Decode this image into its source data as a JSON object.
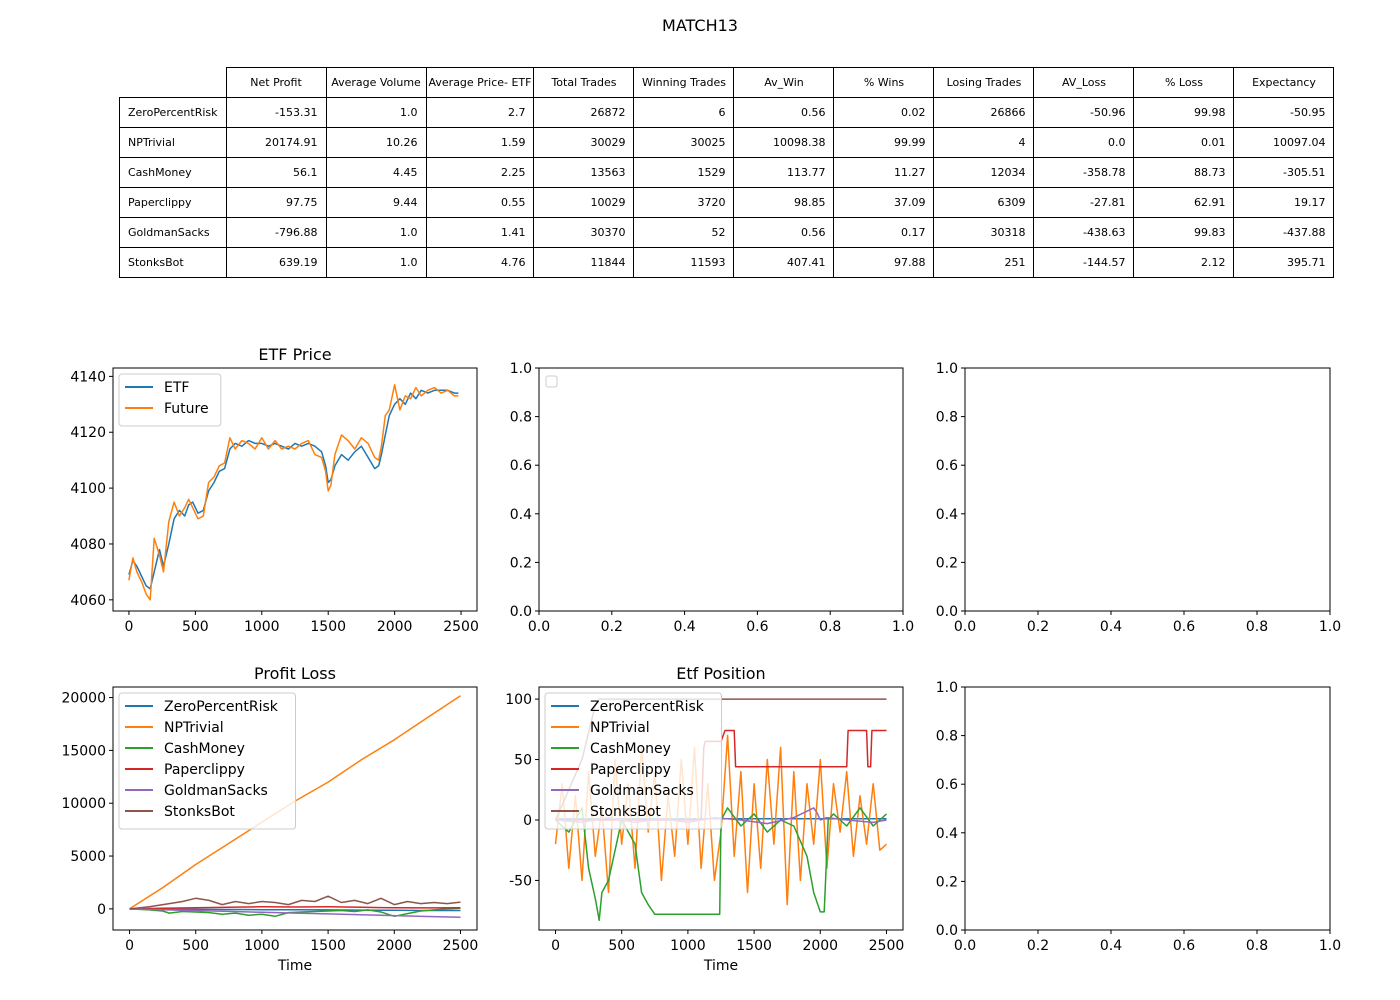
{
  "figure_title": "MATCH13",
  "table": {
    "columns": [
      "Net Profit",
      "Average Volume",
      "Average Price- ETF",
      "Total Trades",
      "Winning Trades",
      "Av_Win",
      "% Wins",
      "Losing Trades",
      "AV_Loss",
      "% Loss",
      "Expectancy"
    ],
    "rows": [
      {
        "name": "ZeroPercentRisk",
        "values": [
          "-153.31",
          "1.0",
          "2.7",
          "26872",
          "6",
          "0.56",
          "0.02",
          "26866",
          "-50.96",
          "99.98",
          "-50.95"
        ]
      },
      {
        "name": "NPTrivial",
        "values": [
          "20174.91",
          "10.26",
          "1.59",
          "30029",
          "30025",
          "10098.38",
          "99.99",
          "4",
          "0.0",
          "0.01",
          "10097.04"
        ]
      },
      {
        "name": "CashMoney",
        "values": [
          "56.1",
          "4.45",
          "2.25",
          "13563",
          "1529",
          "113.77",
          "11.27",
          "12034",
          "-358.78",
          "88.73",
          "-305.51"
        ]
      },
      {
        "name": "Paperclippy",
        "values": [
          "97.75",
          "9.44",
          "0.55",
          "10029",
          "3720",
          "98.85",
          "37.09",
          "6309",
          "-27.81",
          "62.91",
          "19.17"
        ]
      },
      {
        "name": "GoldmanSacks",
        "values": [
          "-796.88",
          "1.0",
          "1.41",
          "30370",
          "52",
          "0.56",
          "0.17",
          "30318",
          "-438.63",
          "99.83",
          "-437.88"
        ]
      },
      {
        "name": "StonksBot",
        "values": [
          "639.19",
          "1.0",
          "4.76",
          "11844",
          "11593",
          "407.41",
          "97.88",
          "251",
          "-144.57",
          "2.12",
          "395.71"
        ]
      }
    ]
  },
  "chart_data": [
    {
      "id": "etf-price",
      "type": "line",
      "title": "ETF Price",
      "xlabel": "",
      "ylabel": "",
      "xlim": [
        -120,
        2620
      ],
      "ylim": [
        4056,
        4143
      ],
      "xticks": [
        0,
        500,
        1000,
        1500,
        2000,
        2500
      ],
      "yticks": [
        4060,
        4080,
        4100,
        4120,
        4140
      ],
      "legend_position": "upper-left",
      "series": [
        {
          "name": "ETF",
          "color": "#1f77b4",
          "x": [
            0,
            30,
            60,
            100,
            130,
            160,
            190,
            230,
            260,
            300,
            340,
            380,
            420,
            450,
            480,
            520,
            560,
            600,
            640,
            680,
            720,
            760,
            800,
            850,
            900,
            950,
            1000,
            1050,
            1100,
            1150,
            1200,
            1250,
            1300,
            1350,
            1400,
            1450,
            1480,
            1500,
            1520,
            1550,
            1600,
            1650,
            1700,
            1750,
            1800,
            1850,
            1880,
            1900,
            1930,
            1960,
            2000,
            2040,
            2080,
            2120,
            2160,
            2200,
            2250,
            2300,
            2350,
            2400,
            2450,
            2480
          ],
          "y": [
            4069,
            4074,
            4072,
            4068,
            4065,
            4064,
            4070,
            4078,
            4072,
            4080,
            4089,
            4092,
            4090,
            4094,
            4095,
            4091,
            4092,
            4099,
            4102,
            4106,
            4107,
            4114,
            4116,
            4115,
            4117,
            4116,
            4116,
            4115,
            4116,
            4115,
            4114,
            4116,
            4115,
            4116,
            4115,
            4113,
            4108,
            4102,
            4103,
            4108,
            4112,
            4110,
            4113,
            4115,
            4111,
            4107,
            4108,
            4112,
            4119,
            4126,
            4130,
            4132,
            4130,
            4134,
            4132,
            4135,
            4134,
            4135,
            4135,
            4135,
            4134,
            4134
          ]
        },
        {
          "name": "Future",
          "color": "#ff7f0e",
          "x": [
            0,
            30,
            60,
            100,
            130,
            160,
            190,
            230,
            260,
            300,
            340,
            380,
            420,
            450,
            480,
            520,
            560,
            600,
            640,
            680,
            720,
            760,
            800,
            850,
            900,
            950,
            1000,
            1050,
            1100,
            1150,
            1200,
            1250,
            1300,
            1350,
            1400,
            1450,
            1480,
            1500,
            1520,
            1550,
            1600,
            1650,
            1700,
            1750,
            1800,
            1850,
            1880,
            1900,
            1930,
            1960,
            2000,
            2040,
            2080,
            2120,
            2160,
            2200,
            2250,
            2300,
            2350,
            2400,
            2450,
            2480
          ],
          "y": [
            4067,
            4075,
            4070,
            4066,
            4062,
            4060,
            4082,
            4076,
            4070,
            4088,
            4095,
            4090,
            4093,
            4096,
            4093,
            4089,
            4090,
            4102,
            4104,
            4108,
            4109,
            4118,
            4114,
            4117,
            4116,
            4114,
            4118,
            4114,
            4117,
            4114,
            4115,
            4114,
            4116,
            4117,
            4112,
            4111,
            4106,
            4099,
            4101,
            4112,
            4119,
            4117,
            4114,
            4118,
            4116,
            4111,
            4110,
            4115,
            4126,
            4128,
            4137,
            4128,
            4133,
            4132,
            4136,
            4133,
            4135,
            4136,
            4134,
            4135,
            4133,
            4133
          ]
        }
      ]
    },
    {
      "id": "empty-top-middle",
      "type": "line",
      "title": "",
      "xlabel": "",
      "ylabel": "",
      "xlim": [
        0,
        1
      ],
      "ylim": [
        0,
        1
      ],
      "xticks": [
        0.0,
        0.2,
        0.4,
        0.6,
        0.8,
        1.0
      ],
      "yticks": [
        0.0,
        0.2,
        0.4,
        0.6,
        0.8,
        1.0
      ],
      "legend_position": "upper-left",
      "series": []
    },
    {
      "id": "empty-top-right",
      "type": "line",
      "title": "",
      "xlabel": "",
      "ylabel": "",
      "xlim": [
        0,
        1
      ],
      "ylim": [
        0,
        1
      ],
      "xticks": [
        0.0,
        0.2,
        0.4,
        0.6,
        0.8,
        1.0
      ],
      "yticks": [
        0.0,
        0.2,
        0.4,
        0.6,
        0.8,
        1.0
      ],
      "series": []
    },
    {
      "id": "profit-loss",
      "type": "line",
      "title": "Profit Loss",
      "xlabel": "Time",
      "ylabel": "",
      "xlim": [
        -125,
        2625
      ],
      "ylim": [
        -2000,
        21000
      ],
      "xticks": [
        0,
        500,
        1000,
        1500,
        2000,
        2500
      ],
      "yticks": [
        0,
        5000,
        10000,
        15000,
        20000
      ],
      "legend_position": "upper-left",
      "series": [
        {
          "name": "ZeroPercentRisk",
          "color": "#1f77b4",
          "x": [
            0,
            250,
            500,
            750,
            1000,
            1250,
            1500,
            1750,
            2000,
            2250,
            2500
          ],
          "y": [
            0,
            -30,
            -50,
            -60,
            -80,
            -90,
            -100,
            -120,
            -140,
            -150,
            -153
          ]
        },
        {
          "name": "NPTrivial",
          "color": "#ff7f0e",
          "x": [
            0,
            250,
            500,
            750,
            1000,
            1250,
            1500,
            1750,
            2000,
            2250,
            2500
          ],
          "y": [
            0,
            2000,
            4200,
            6200,
            8200,
            10200,
            12000,
            14100,
            16000,
            18100,
            20175
          ]
        },
        {
          "name": "CashMoney",
          "color": "#2ca02c",
          "x": [
            0,
            150,
            250,
            300,
            400,
            500,
            600,
            700,
            800,
            900,
            1000,
            1100,
            1200,
            1300,
            1400,
            1500,
            1600,
            1700,
            1800,
            1900,
            2000,
            2100,
            2200,
            2300,
            2400,
            2500
          ],
          "y": [
            0,
            -100,
            -200,
            -400,
            -250,
            -300,
            -350,
            -500,
            -400,
            -600,
            -500,
            -700,
            -350,
            -300,
            -250,
            -200,
            -150,
            -250,
            -100,
            -300,
            -700,
            -450,
            -200,
            -100,
            0,
            56
          ]
        },
        {
          "name": "Paperclippy",
          "color": "#d62728",
          "x": [
            0,
            250,
            500,
            750,
            1000,
            1250,
            1500,
            1750,
            2000,
            2250,
            2500
          ],
          "y": [
            0,
            60,
            100,
            150,
            200,
            180,
            200,
            150,
            100,
            90,
            98
          ]
        },
        {
          "name": "GoldmanSacks",
          "color": "#9467bd",
          "x": [
            0,
            250,
            500,
            750,
            1000,
            1250,
            1500,
            1750,
            2000,
            2250,
            2500
          ],
          "y": [
            0,
            -80,
            -160,
            -240,
            -320,
            -400,
            -480,
            -560,
            -640,
            -720,
            -797
          ]
        },
        {
          "name": "StonksBot",
          "color": "#8c564b",
          "x": [
            0,
            150,
            300,
            400,
            500,
            600,
            700,
            800,
            900,
            1000,
            1100,
            1200,
            1300,
            1400,
            1500,
            1600,
            1700,
            1800,
            1900,
            2000,
            2100,
            2200,
            2300,
            2400,
            2500
          ],
          "y": [
            0,
            200,
            500,
            700,
            1000,
            800,
            400,
            700,
            500,
            700,
            600,
            400,
            800,
            700,
            1200,
            600,
            800,
            500,
            1000,
            400,
            700,
            500,
            600,
            500,
            640
          ]
        }
      ]
    },
    {
      "id": "etf-position",
      "type": "line",
      "title": "Etf Position",
      "xlabel": "Time",
      "ylabel": "",
      "xlim": [
        -125,
        2625
      ],
      "ylim": [
        -91,
        110
      ],
      "xticks": [
        0,
        500,
        1000,
        1500,
        2000,
        2500
      ],
      "yticks": [
        -50,
        0,
        50,
        100
      ],
      "legend_position": "upper-left",
      "series": [
        {
          "name": "ZeroPercentRisk",
          "color": "#1f77b4",
          "x": [
            0,
            500,
            1000,
            1500,
            2000,
            2500
          ],
          "y": [
            1,
            1,
            1,
            1,
            1,
            1
          ]
        },
        {
          "name": "NPTrivial",
          "color": "#ff7f0e",
          "x": [
            0,
            50,
            100,
            150,
            200,
            250,
            300,
            350,
            400,
            450,
            500,
            550,
            600,
            650,
            700,
            750,
            800,
            850,
            900,
            950,
            1000,
            1050,
            1100,
            1150,
            1200,
            1250,
            1300,
            1350,
            1400,
            1450,
            1500,
            1550,
            1600,
            1650,
            1700,
            1750,
            1800,
            1850,
            1900,
            1950,
            2000,
            2050,
            2100,
            2150,
            2200,
            2250,
            2300,
            2350,
            2400,
            2450,
            2500
          ],
          "y": [
            -20,
            30,
            -40,
            20,
            -50,
            40,
            -30,
            10,
            -60,
            50,
            -20,
            30,
            -40,
            60,
            -10,
            40,
            -50,
            20,
            -30,
            50,
            -20,
            60,
            -40,
            30,
            -50,
            -10,
            70,
            -30,
            40,
            -60,
            30,
            -40,
            50,
            -20,
            60,
            -70,
            40,
            -50,
            30,
            -20,
            50,
            -40,
            30,
            -10,
            40,
            -30,
            20,
            -20,
            30,
            -25,
            -20
          ]
        },
        {
          "name": "CashMoney",
          "color": "#2ca02c",
          "x": [
            0,
            100,
            200,
            250,
            300,
            330,
            350,
            400,
            500,
            600,
            650,
            700,
            750,
            800,
            900,
            1000,
            1100,
            1200,
            1240,
            1250,
            1300,
            1400,
            1500,
            1600,
            1700,
            1800,
            1900,
            1950,
            2000,
            2030,
            2060,
            2100,
            2200,
            2300,
            2400,
            2500
          ],
          "y": [
            0,
            -10,
            10,
            -40,
            -65,
            -83,
            -60,
            -50,
            0,
            -20,
            -60,
            -70,
            -78,
            -78,
            -78,
            -78,
            -78,
            -78,
            -78,
            0,
            10,
            -5,
            5,
            -10,
            0,
            -5,
            -30,
            -60,
            -76,
            -76,
            0,
            5,
            -5,
            10,
            -5,
            5
          ]
        },
        {
          "name": "Paperclippy",
          "color": "#d62728",
          "x": [
            0,
            1100,
            1120,
            1130,
            1250,
            1280,
            1350,
            1360,
            1370,
            2180,
            2200,
            2210,
            2350,
            2360,
            2380,
            2390,
            2500
          ],
          "y": [
            0,
            0,
            60,
            65,
            65,
            74,
            74,
            44,
            44,
            44,
            44,
            74,
            74,
            44,
            44,
            74,
            74
          ]
        },
        {
          "name": "GoldmanSacks",
          "color": "#9467bd",
          "x": [
            0,
            200,
            400,
            600,
            800,
            1000,
            1200,
            1400,
            1600,
            1800,
            1950,
            1980,
            2000,
            2050,
            2200,
            2400,
            2500
          ],
          "y": [
            0,
            -2,
            2,
            -2,
            1,
            -2,
            2,
            0,
            -3,
            2,
            10,
            5,
            0,
            2,
            0,
            -2,
            0
          ]
        },
        {
          "name": "StonksBot",
          "color": "#8c564b",
          "x": [
            0,
            200,
            300,
            330,
            500,
            1000,
            1500,
            2000,
            2500
          ],
          "y": [
            0,
            50,
            95,
            100,
            100,
            100,
            100,
            100,
            100
          ]
        }
      ]
    },
    {
      "id": "empty-bottom-right",
      "type": "line",
      "title": "",
      "xlabel": "",
      "ylabel": "",
      "xlim": [
        0,
        1
      ],
      "ylim": [
        0,
        1
      ],
      "xticks": [
        0.0,
        0.2,
        0.4,
        0.6,
        0.8,
        1.0
      ],
      "yticks": [
        0.0,
        0.2,
        0.4,
        0.6,
        0.8,
        1.0
      ],
      "series": []
    }
  ]
}
